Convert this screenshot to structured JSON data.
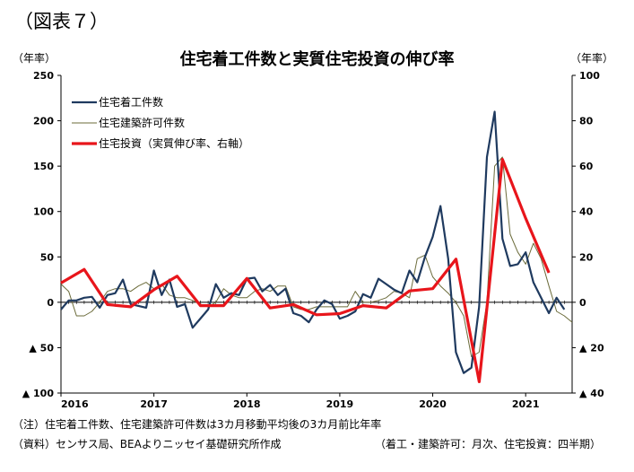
{
  "figure_label": "（図表７）",
  "title": "住宅着工件数と実質住宅投資の伸び率",
  "unit_left": "（年率）",
  "unit_right": "（年率）",
  "notes": {
    "note1": "（注）住宅着工件数、住宅建築許可件数は3カ月移動平均後の3カ月前比年率",
    "source": "（資料）センサス局、BEAよりニッセイ基礎研究所作成",
    "frequency": "（着工・建築許可：月次、住宅投資：四半期）"
  },
  "chart_data": {
    "type": "line",
    "title": "住宅着工件数と実質住宅投資の伸び率",
    "y_left": {
      "label": "（年率）",
      "lim": [
        -100,
        250
      ],
      "ticks": [
        250,
        200,
        150,
        100,
        50,
        0,
        -50,
        -100
      ],
      "tick_labels": [
        "250",
        "200",
        "150",
        "100",
        "50",
        "0",
        "▲ 50",
        "▲ 100"
      ]
    },
    "y_right": {
      "label": "（年率）",
      "lim": [
        -40,
        100
      ],
      "ticks": [
        100,
        80,
        60,
        40,
        20,
        0,
        -20,
        -40
      ],
      "tick_labels": [
        "100",
        "80",
        "60",
        "40",
        "20",
        "0",
        "▲ 20",
        "▲ 40"
      ]
    },
    "x": {
      "lim": [
        2016.0,
        2021.5
      ],
      "ticks": [
        2016,
        2017,
        2018,
        2019,
        2020,
        2021
      ],
      "tick_labels": [
        "2016",
        "2017",
        "2018",
        "2019",
        "2020",
        "2021"
      ]
    },
    "legend_position": "top-left",
    "grid": false,
    "colors": {
      "starts": "#1f3a5f",
      "permits": "#6b6b3a",
      "investment": "#e8151b"
    },
    "series": [
      {
        "name": "住宅着工件数",
        "axis": "left",
        "x_start": 2016.0,
        "step": 0.08333,
        "values": [
          -8,
          2,
          2,
          5,
          6,
          -6,
          8,
          10,
          25,
          -2,
          -4,
          -6,
          35,
          8,
          25,
          -5,
          -2,
          -28,
          -18,
          -8,
          20,
          5,
          10,
          8,
          26,
          27,
          12,
          19,
          8,
          15,
          -12,
          -15,
          -22,
          -8,
          2,
          -2,
          -18,
          -15,
          -10,
          9,
          5,
          26,
          20,
          14,
          10,
          35,
          22,
          50,
          72,
          106,
          48,
          -55,
          -78,
          -72,
          -5,
          160,
          210,
          70,
          40,
          42,
          55,
          22,
          5,
          -12,
          5,
          -8
        ]
      },
      {
        "name": "住宅建築許可件数",
        "axis": "left",
        "x_start": 2016.0,
        "step": 0.08333,
        "values": [
          20,
          12,
          -15,
          -15,
          -10,
          0,
          12,
          15,
          15,
          12,
          18,
          22,
          15,
          20,
          8,
          5,
          5,
          2,
          -2,
          -5,
          0,
          15,
          8,
          5,
          5,
          12,
          15,
          12,
          18,
          18,
          -5,
          -8,
          -8,
          -5,
          -5,
          -5,
          -5,
          -5,
          12,
          0,
          0,
          2,
          5,
          12,
          10,
          5,
          48,
          52,
          28,
          18,
          10,
          0,
          -15,
          -60,
          -55,
          0,
          150,
          160,
          75,
          55,
          42,
          65,
          48,
          18,
          -10,
          -15,
          -22
        ]
      },
      {
        "name": "住宅投資（実質伸び率、右軸）",
        "axis": "right",
        "x": [
          2016.0,
          2016.25,
          2016.5,
          2016.75,
          2017.0,
          2017.25,
          2017.5,
          2017.75,
          2018.0,
          2018.25,
          2018.5,
          2018.75,
          2019.0,
          2019.25,
          2019.5,
          2019.75,
          2020.0,
          2020.25,
          2020.5,
          2020.75,
          2021.0,
          2021.25
        ],
        "values": [
          8.5,
          14.5,
          -1,
          -2,
          5.5,
          11.5,
          -1.5,
          -1.5,
          10.5,
          -2.5,
          -1,
          -5.5,
          -5,
          -1.5,
          -2.5,
          5,
          6,
          19,
          -35,
          63,
          37,
          13
        ]
      }
    ]
  }
}
